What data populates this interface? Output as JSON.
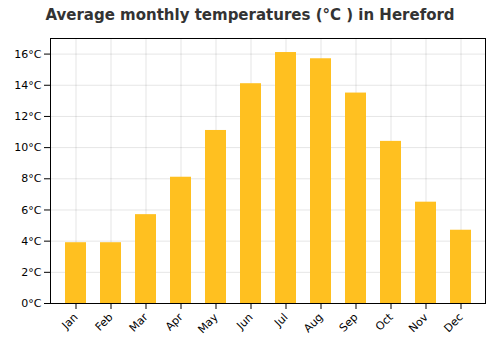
{
  "chart_data": {
    "type": "bar",
    "title": "Average monthly temperatures (°C ) in Hereford",
    "categories": [
      "Jan",
      "Feb",
      "Mar",
      "Apr",
      "May",
      "Jun",
      "Jul",
      "Aug",
      "Sep",
      "Oct",
      "Nov",
      "Dec"
    ],
    "values": [
      3.9,
      3.9,
      5.7,
      8.1,
      11.1,
      14.1,
      16.1,
      15.7,
      13.5,
      10.4,
      6.5,
      4.7
    ],
    "color": "#FFC020",
    "ylim": [
      0,
      17
    ],
    "yticks": [
      {
        "value": 0,
        "label": "0°C"
      },
      {
        "value": 2,
        "label": "2°C"
      },
      {
        "value": 4,
        "label": "4°C"
      },
      {
        "value": 6,
        "label": "6°C"
      },
      {
        "value": 8,
        "label": "8°C"
      },
      {
        "value": 10,
        "label": "10°C"
      },
      {
        "value": 12,
        "label": "12°C"
      },
      {
        "value": 14,
        "label": "14°C"
      },
      {
        "value": 16,
        "label": "16°C"
      }
    ],
    "grid": true
  }
}
